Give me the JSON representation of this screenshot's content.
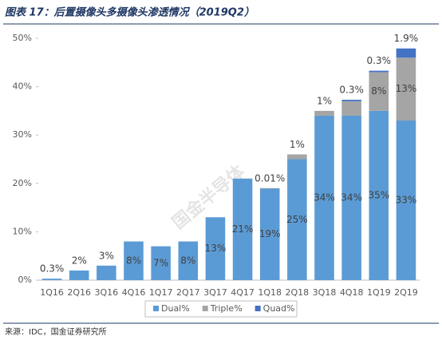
{
  "chart_data": {
    "type": "stacked_bar",
    "title": "图表 17：后置摄像头多摄像头渗透情况（2019Q2）",
    "source": "来源：IDC，国金证券研究所",
    "watermark": "国金半导体",
    "categories": [
      "1Q16",
      "2Q16",
      "3Q16",
      "4Q16",
      "1Q17",
      "2Q17",
      "3Q17",
      "4Q17",
      "1Q18",
      "2Q18",
      "3Q18",
      "4Q18",
      "1Q19",
      "2Q19"
    ],
    "series": [
      {
        "name": "Dual%",
        "color": "#5b9bd5",
        "values": [
          0.3,
          2,
          3,
          8,
          7,
          8,
          13,
          21,
          19,
          25,
          34,
          34,
          35,
          33
        ],
        "value_labels": [
          "0.3%",
          "2%",
          "3%",
          "8%",
          "7%",
          "8%",
          "13%",
          "21%",
          "19%",
          "25%",
          "34%",
          "34%",
          "35%",
          "33%"
        ]
      },
      {
        "name": "Triple%",
        "color": "#a5a5a5",
        "values": [
          null,
          null,
          null,
          null,
          null,
          null,
          null,
          null,
          0.01,
          1,
          1,
          3,
          8,
          13
        ],
        "value_labels": [
          null,
          null,
          null,
          null,
          null,
          null,
          null,
          null,
          "0.01%",
          "1%",
          "1%",
          null,
          "8%",
          "13%"
        ]
      },
      {
        "name": "Quad%",
        "color": "#4472c4",
        "values": [
          null,
          null,
          null,
          null,
          null,
          null,
          null,
          null,
          null,
          null,
          null,
          0.3,
          0.3,
          1.9
        ],
        "value_labels": [
          null,
          null,
          null,
          null,
          null,
          null,
          null,
          null,
          null,
          null,
          null,
          "0.3%",
          "0.3%",
          "1.9%"
        ]
      }
    ],
    "ylim": [
      0,
      50
    ],
    "yticks": [
      {
        "value": 0,
        "label": "0%"
      },
      {
        "value": 10,
        "label": "10%"
      },
      {
        "value": 20,
        "label": "20%"
      },
      {
        "value": 30,
        "label": "30%"
      },
      {
        "value": 40,
        "label": "40%"
      },
      {
        "value": 50,
        "label": "50%"
      }
    ],
    "legend": "bottom"
  }
}
